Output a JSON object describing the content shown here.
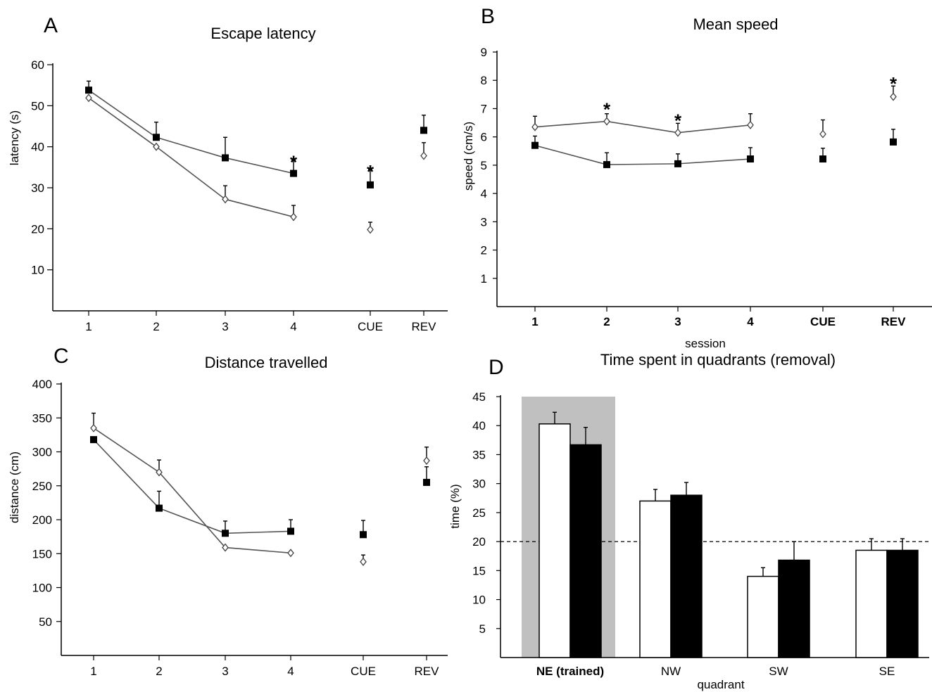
{
  "chart_data": [
    {
      "panel": "A",
      "type": "line",
      "title": "Escape latency",
      "xlabel": "",
      "ylabel": "latency (s)",
      "ylim": [
        0,
        60
      ],
      "yticks": [
        "10",
        "20",
        "30",
        "40",
        "50",
        "60"
      ],
      "categories": [
        "1",
        "2",
        "3",
        "4",
        "CUE",
        "REV"
      ],
      "series": [
        {
          "marker": "filled-square",
          "values": [
            53.8,
            42.3,
            37.3,
            33.5,
            30.7,
            44.0
          ],
          "errors": [
            2.2,
            3.7,
            5.0,
            3.3,
            3.8,
            3.7
          ],
          "connected_to": 4
        },
        {
          "marker": "open-diamond",
          "values": [
            51.9,
            40.0,
            27.2,
            22.9,
            19.8,
            37.8
          ],
          "errors": [
            0,
            0,
            3.3,
            2.8,
            1.8,
            3.2
          ],
          "connected_to": 4
        }
      ],
      "annotations": [
        {
          "category": "4",
          "text": "*",
          "y": 36.8
        },
        {
          "category": "CUE",
          "text": "*",
          "y": 34.5
        }
      ]
    },
    {
      "panel": "B",
      "type": "line",
      "title": "Mean speed",
      "xlabel": "session",
      "ylabel": "speed (cm/s)",
      "ylim": [
        0,
        9
      ],
      "yticks": [
        "1",
        "2",
        "3",
        "4",
        "5",
        "6",
        "7",
        "8",
        "9"
      ],
      "categories": [
        "1",
        "2",
        "3",
        "4",
        "CUE",
        "REV"
      ],
      "series": [
        {
          "marker": "filled-square",
          "values": [
            5.7,
            5.02,
            5.05,
            5.22,
            5.22,
            5.82
          ],
          "errors": [
            0.33,
            0.42,
            0.35,
            0.4,
            0.38,
            0.45
          ],
          "connected_to": 4
        },
        {
          "marker": "open-diamond",
          "values": [
            6.35,
            6.55,
            6.15,
            6.42,
            6.1,
            7.42
          ],
          "errors": [
            0.38,
            0.27,
            0.33,
            0.4,
            0.5,
            0.38
          ],
          "connected_to": 4
        }
      ],
      "annotations": [
        {
          "category": "2",
          "text": "*",
          "y": 7.05
        },
        {
          "category": "3",
          "text": "*",
          "y": 6.65
        },
        {
          "category": "REV",
          "text": "*",
          "y": 7.95
        }
      ]
    },
    {
      "panel": "C",
      "type": "line",
      "title": "Distance travelled",
      "xlabel": "",
      "ylabel": "distance (cm)",
      "ylim": [
        0,
        400
      ],
      "yticks": [
        "50",
        "100",
        "150",
        "200",
        "250",
        "300",
        "350",
        "400"
      ],
      "categories": [
        "1",
        "2",
        "3",
        "4",
        "CUE",
        "REV"
      ],
      "series": [
        {
          "marker": "filled-square",
          "values": [
            318,
            217,
            180,
            183,
            178,
            255
          ],
          "errors": [
            0,
            25,
            18,
            17,
            21,
            23
          ],
          "connected_to": 4
        },
        {
          "marker": "open-diamond",
          "values": [
            335,
            270,
            159,
            151,
            138,
            287
          ],
          "errors": [
            22,
            18,
            0,
            0,
            10,
            20
          ],
          "connected_to": 4
        }
      ],
      "annotations": []
    },
    {
      "panel": "D",
      "type": "bar",
      "title": "Time spent in quadrants (removal)",
      "xlabel": "quadrant",
      "ylabel": "time (%)",
      "ylim": [
        0,
        45
      ],
      "yticks": [
        "5",
        "10",
        "15",
        "20",
        "25",
        "30",
        "35",
        "40",
        "45"
      ],
      "categories": [
        "NE (trained)",
        "NW",
        "SW",
        "SE"
      ],
      "highlight_category": "NE (trained)",
      "highlight_color": "#c0c0c0",
      "reference_line": 20,
      "series": [
        {
          "fill": "#ffffff",
          "values": [
            40.3,
            27.0,
            14.0,
            18.5
          ],
          "errors": [
            2.0,
            2.0,
            1.5,
            2.0
          ]
        },
        {
          "fill": "#000000",
          "values": [
            36.7,
            28.0,
            16.8,
            18.5
          ],
          "errors": [
            3.0,
            2.2,
            3.2,
            2.0
          ]
        }
      ]
    }
  ]
}
